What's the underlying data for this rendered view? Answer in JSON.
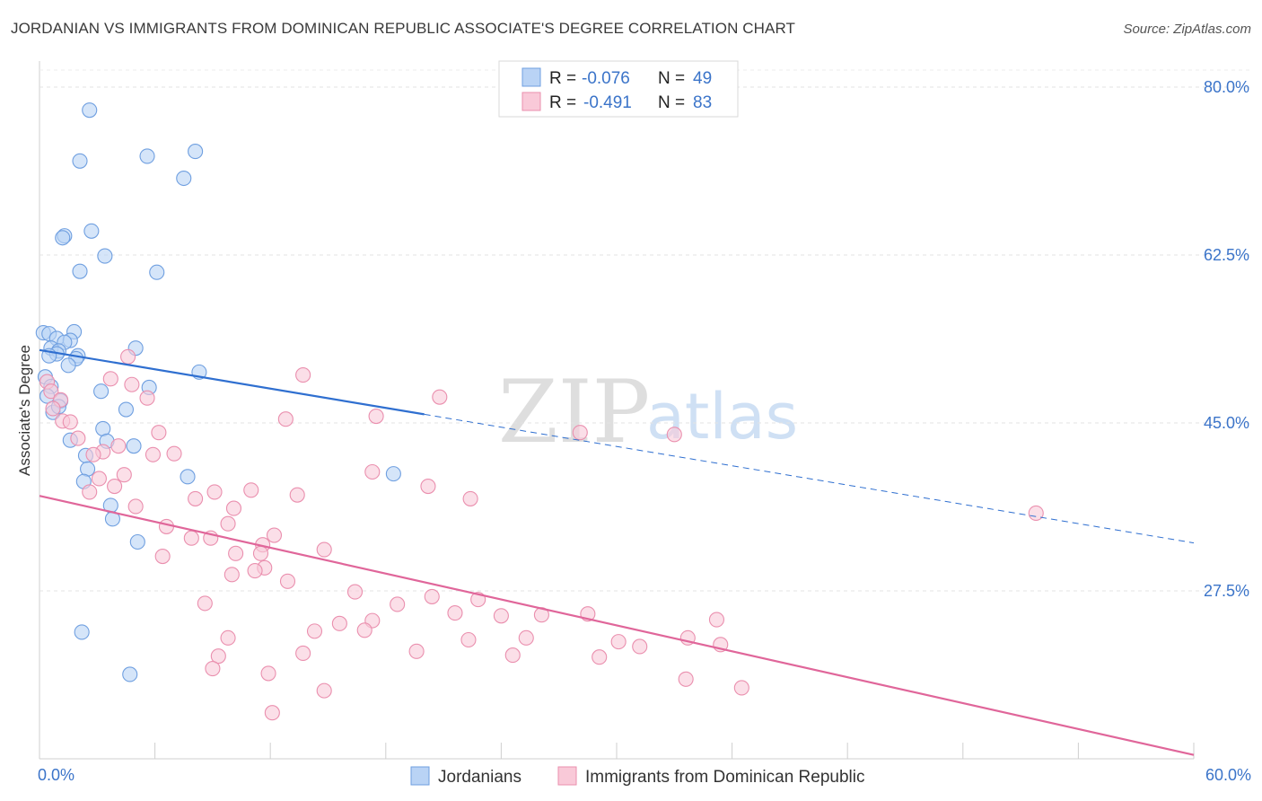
{
  "header": {
    "title": "JORDANIAN VS IMMIGRANTS FROM DOMINICAN REPUBLIC ASSOCIATE'S DEGREE CORRELATION CHART",
    "source": "Source: ZipAtlas.com"
  },
  "watermark": {
    "zip": "ZIP",
    "atlas": "atlas"
  },
  "legend": {
    "rows": [
      {
        "r_label": "R = ",
        "r_value": "-0.076",
        "n_label": "N = ",
        "n_value": "49",
        "fill": "#b9d3f5",
        "stroke": "#6f9fe0"
      },
      {
        "r_label": "R = ",
        "r_value": "-0.491",
        "n_label": "N = ",
        "n_value": "83",
        "fill": "#f9c9d8",
        "stroke": "#ea8fae"
      }
    ]
  },
  "chart_data": {
    "type": "scatter",
    "title": "JORDANIAN VS IMMIGRANTS FROM DOMINICAN REPUBLIC ASSOCIATE'S DEGREE CORRELATION CHART",
    "xlabel": "",
    "ylabel": "Associate's Degree",
    "xlim": [
      0,
      60
    ],
    "ylim": [
      10,
      82
    ],
    "x_tick_labels": {
      "left": "0.0%",
      "right": "60.0%"
    },
    "y_ticks": [
      {
        "value": 80,
        "label": "80.0%"
      },
      {
        "value": 62.5,
        "label": "62.5%"
      },
      {
        "value": 45,
        "label": "45.0%"
      },
      {
        "value": 27.5,
        "label": "27.5%"
      }
    ],
    "series": [
      {
        "name": "Jordanians",
        "color": "#6f9fe0",
        "fill": "#b9d3f5",
        "trend": {
          "x0": 0,
          "y0": 52.6,
          "x1": 20,
          "y1": 45.9,
          "dash_to_x": 60,
          "dash_to_y": 32.5
        },
        "points": [
          [
            2.6,
            77.6
          ],
          [
            2.1,
            72.3
          ],
          [
            5.6,
            72.8
          ],
          [
            8.1,
            73.3
          ],
          [
            7.5,
            70.5
          ],
          [
            2.7,
            65.0
          ],
          [
            1.3,
            64.5
          ],
          [
            1.2,
            64.3
          ],
          [
            3.4,
            62.4
          ],
          [
            2.1,
            60.8
          ],
          [
            6.1,
            60.7
          ],
          [
            0.2,
            54.4
          ],
          [
            0.5,
            54.3
          ],
          [
            1.8,
            54.5
          ],
          [
            0.9,
            53.8
          ],
          [
            1.6,
            53.6
          ],
          [
            1.3,
            53.4
          ],
          [
            0.6,
            52.8
          ],
          [
            1.0,
            52.5
          ],
          [
            0.9,
            52.2
          ],
          [
            2.0,
            52.0
          ],
          [
            1.9,
            51.7
          ],
          [
            5.0,
            52.8
          ],
          [
            8.3,
            50.3
          ],
          [
            0.3,
            49.8
          ],
          [
            0.6,
            48.8
          ],
          [
            3.2,
            48.3
          ],
          [
            5.7,
            48.7
          ],
          [
            1.1,
            47.3
          ],
          [
            0.7,
            46.1
          ],
          [
            4.5,
            46.4
          ],
          [
            3.3,
            44.4
          ],
          [
            3.5,
            43.1
          ],
          [
            1.6,
            43.2
          ],
          [
            4.9,
            42.6
          ],
          [
            2.4,
            41.6
          ],
          [
            2.5,
            40.2
          ],
          [
            7.7,
            39.4
          ],
          [
            18.4,
            39.7
          ],
          [
            2.3,
            38.9
          ],
          [
            3.7,
            36.4
          ],
          [
            3.8,
            35.0
          ],
          [
            5.1,
            32.6
          ],
          [
            2.2,
            23.2
          ],
          [
            4.7,
            18.8
          ],
          [
            0.4,
            47.8
          ],
          [
            1.0,
            46.7
          ],
          [
            0.5,
            52.0
          ],
          [
            1.5,
            51.0
          ]
        ]
      },
      {
        "name": "Immigrants from Dominican Republic",
        "color": "#ea8fae",
        "fill": "#f9c9d8",
        "trend": {
          "x0": 0,
          "y0": 37.4,
          "x1": 60,
          "y1": 10.4
        },
        "points": [
          [
            0.4,
            49.3
          ],
          [
            0.6,
            48.3
          ],
          [
            1.1,
            47.4
          ],
          [
            0.7,
            46.5
          ],
          [
            1.2,
            45.2
          ],
          [
            1.6,
            45.1
          ],
          [
            2.0,
            43.4
          ],
          [
            3.7,
            49.6
          ],
          [
            4.8,
            49.0
          ],
          [
            5.6,
            47.6
          ],
          [
            4.6,
            51.9
          ],
          [
            13.7,
            50.0
          ],
          [
            20.8,
            47.7
          ],
          [
            17.5,
            45.7
          ],
          [
            12.8,
            45.4
          ],
          [
            28.1,
            44.0
          ],
          [
            33.0,
            43.8
          ],
          [
            6.2,
            44.0
          ],
          [
            3.3,
            42.0
          ],
          [
            2.8,
            41.7
          ],
          [
            4.1,
            42.6
          ],
          [
            5.9,
            41.7
          ],
          [
            7.0,
            41.8
          ],
          [
            17.3,
            39.9
          ],
          [
            3.1,
            39.2
          ],
          [
            4.4,
            39.6
          ],
          [
            2.6,
            37.8
          ],
          [
            3.9,
            38.4
          ],
          [
            9.1,
            37.8
          ],
          [
            11.0,
            38.0
          ],
          [
            13.4,
            37.5
          ],
          [
            22.4,
            37.1
          ],
          [
            20.2,
            38.4
          ],
          [
            8.1,
            37.1
          ],
          [
            10.1,
            36.1
          ],
          [
            5.0,
            36.3
          ],
          [
            51.8,
            35.6
          ],
          [
            6.6,
            34.2
          ],
          [
            9.8,
            34.5
          ],
          [
            8.9,
            33.0
          ],
          [
            7.9,
            33.0
          ],
          [
            12.2,
            33.3
          ],
          [
            11.6,
            32.3
          ],
          [
            14.8,
            31.8
          ],
          [
            11.5,
            31.4
          ],
          [
            6.4,
            31.1
          ],
          [
            10.2,
            31.4
          ],
          [
            11.7,
            29.9
          ],
          [
            12.9,
            28.5
          ],
          [
            10.0,
            29.2
          ],
          [
            11.2,
            29.6
          ],
          [
            8.6,
            26.2
          ],
          [
            16.4,
            27.4
          ],
          [
            18.6,
            26.1
          ],
          [
            20.4,
            26.9
          ],
          [
            22.8,
            26.6
          ],
          [
            15.6,
            24.1
          ],
          [
            14.3,
            23.3
          ],
          [
            17.3,
            24.4
          ],
          [
            16.9,
            23.4
          ],
          [
            21.6,
            25.2
          ],
          [
            24.0,
            24.9
          ],
          [
            28.5,
            25.1
          ],
          [
            26.1,
            25.0
          ],
          [
            33.7,
            22.6
          ],
          [
            30.1,
            22.2
          ],
          [
            35.2,
            24.5
          ],
          [
            31.2,
            21.7
          ],
          [
            22.3,
            22.4
          ],
          [
            19.6,
            21.2
          ],
          [
            13.7,
            21.0
          ],
          [
            9.8,
            22.6
          ],
          [
            9.3,
            20.7
          ],
          [
            9.0,
            19.4
          ],
          [
            11.9,
            18.9
          ],
          [
            14.8,
            17.1
          ],
          [
            12.1,
            14.8
          ],
          [
            24.6,
            20.8
          ],
          [
            25.3,
            22.6
          ],
          [
            29.1,
            20.6
          ],
          [
            35.4,
            21.9
          ],
          [
            36.5,
            17.4
          ],
          [
            33.6,
            18.3
          ]
        ]
      }
    ]
  }
}
